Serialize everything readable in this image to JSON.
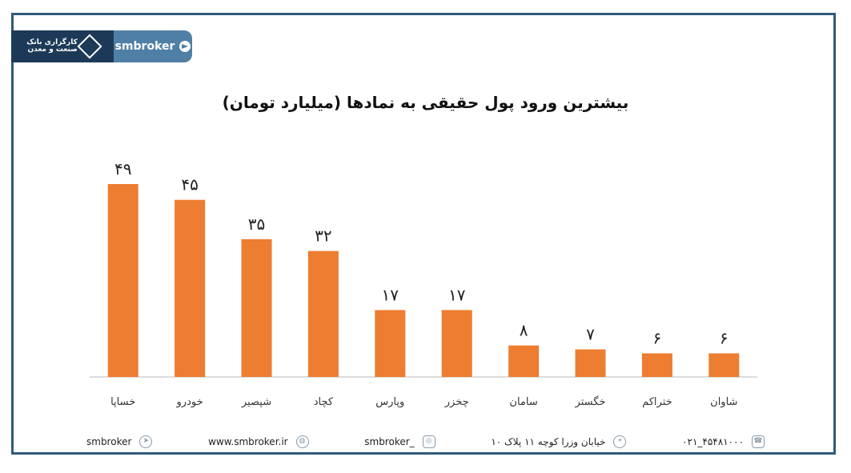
{
  "brand": {
    "logo_text_line1": "کارگزاری بانک",
    "logo_text_line2": "صنعت و معدن",
    "handle": "smbroker"
  },
  "chart_data": {
    "type": "bar",
    "title": "بیشترین ورود پول حقیقی به نمادها (میلیارد تومان)",
    "categories": [
      "خساپا",
      "خودرو",
      "شپصیر",
      "کچاد",
      "وپارس",
      "چخزر",
      "سامان",
      "خگستر",
      "ختراکم",
      "شاوان"
    ],
    "values": [
      49,
      45,
      35,
      32,
      17,
      17,
      8,
      7,
      6,
      6
    ],
    "value_labels": [
      "۴۹",
      "۴۵",
      "۳۵",
      "۳۲",
      "۱۷",
      "۱۷",
      "۸",
      "۷",
      "۶",
      "۶"
    ],
    "ylim": [
      0,
      49
    ],
    "bar_color": "#ed7d31",
    "grid": false
  },
  "footer": {
    "telegram": "smbroker",
    "website": "www.smbroker.ir",
    "instagram": "smbroker_",
    "address": "خیابان وزرا کوچه ۱۱ پلاک ۱۰",
    "phone": "۰۲۱_۴۵۴۸۱۰۰۰"
  },
  "colors": {
    "frame": "#2f5b7a",
    "logo_bg": "#1c3a58",
    "telegram_bg": "#4f7fa5"
  }
}
